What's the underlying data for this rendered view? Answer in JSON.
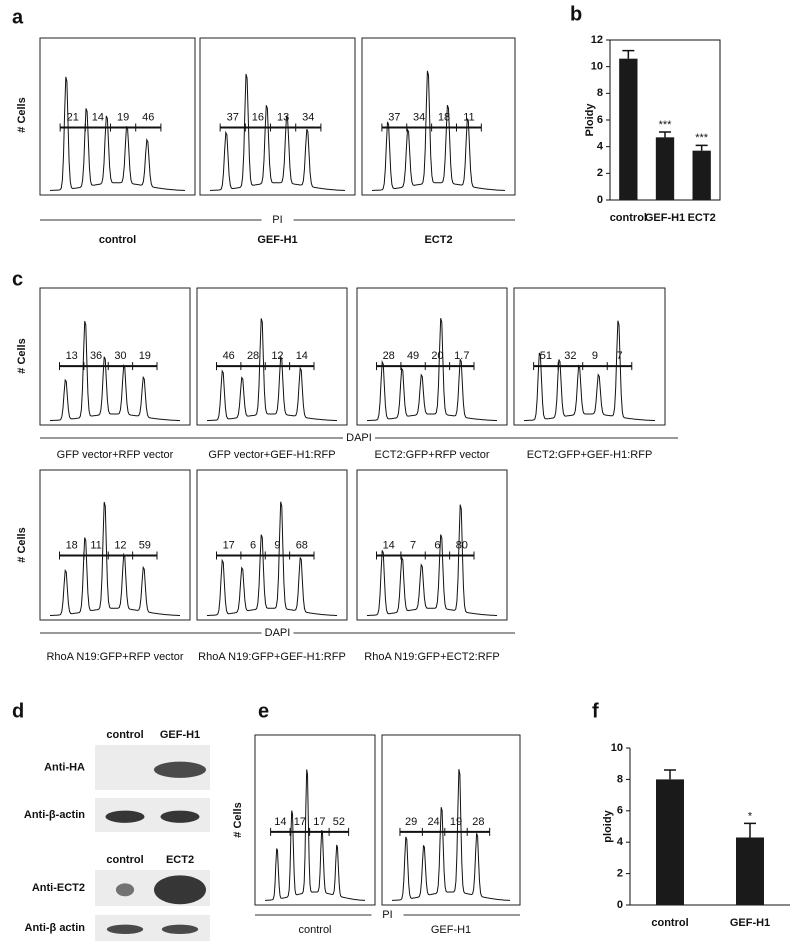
{
  "chart_data": [
    {
      "type": "bar",
      "panel_label": "b",
      "ylabel": "Ploidy",
      "categories": [
        "control",
        "GEF-H1",
        "ECT2"
      ],
      "values": [
        10.6,
        4.7,
        3.7
      ],
      "errors": [
        0.6,
        0.4,
        0.4
      ],
      "significance": [
        null,
        "***",
        "***"
      ],
      "color": "#1a1a1a",
      "ylim": [
        0,
        12
      ],
      "yticks": [
        0,
        2,
        4,
        6,
        8,
        10,
        12
      ]
    },
    {
      "type": "bar",
      "panel_label": "f",
      "ylabel": "ploidy",
      "categories": [
        "control",
        "GEF-H1"
      ],
      "values": [
        8.0,
        4.3
      ],
      "errors": [
        0.6,
        0.9
      ],
      "significance": [
        null,
        "*"
      ],
      "color": "#1a1a1a",
      "ylim": [
        0,
        10
      ],
      "yticks": [
        0,
        2,
        4,
        6,
        8,
        10
      ]
    }
  ],
  "flow_panels": [
    {
      "panel_label": "a",
      "rows": [
        {
          "xlabel": "PI",
          "ylabel": "# Cells",
          "histograms": [
            {
              "label": "control",
              "gates": [
                21,
                14,
                19,
                46
              ]
            },
            {
              "label": "GEF-H1",
              "gates": [
                37,
                16,
                13,
                34
              ]
            },
            {
              "label": "ECT2",
              "gates": [
                37,
                34,
                18,
                11
              ]
            }
          ]
        }
      ]
    },
    {
      "panel_label": "c",
      "rows": [
        {
          "xlabel": "DAPI",
          "ylabel": "# Cells",
          "histograms": [
            {
              "label": "GFP vector+RFP vector",
              "gates": [
                13,
                36,
                30,
                19
              ]
            },
            {
              "label": "GFP vector+GEF-H1:RFP",
              "gates": [
                46,
                28,
                12,
                14
              ]
            },
            {
              "label": "ECT2:GFP+RFP vector",
              "gates": [
                28,
                49,
                20,
                1.7
              ]
            },
            {
              "label": "ECT2:GFP+GEF-H1:RFP",
              "gates": [
                51,
                32,
                9,
                7
              ]
            }
          ]
        },
        {
          "xlabel": "DAPI",
          "ylabel": "# Cells",
          "histograms": [
            {
              "label": "RhoA N19:GFP+RFP vector",
              "gates": [
                18,
                11,
                12,
                59
              ]
            },
            {
              "label": "RhoA N19:GFP+GEF-H1:RFP",
              "gates": [
                17,
                6,
                9,
                68
              ]
            },
            {
              "label": "RhoA N19:GFP+ECT2:RFP",
              "gates": [
                14,
                7,
                6,
                80
              ]
            }
          ]
        }
      ]
    },
    {
      "panel_label": "e",
      "rows": [
        {
          "xlabel": "PI",
          "ylabel": "# Cells",
          "histograms": [
            {
              "label": "control",
              "gates": [
                14,
                17,
                17,
                52
              ]
            },
            {
              "label": "GEF-H1",
              "gates": [
                29,
                24,
                19,
                28
              ]
            }
          ]
        }
      ]
    }
  ],
  "blots": {
    "panel_label": "d",
    "groups": [
      {
        "lanes": [
          "control",
          "GEF-H1"
        ],
        "rows": [
          "Anti-HA",
          "Anti-β-actin"
        ]
      },
      {
        "lanes": [
          "control",
          "ECT2"
        ],
        "rows": [
          "Anti-ECT2",
          "Anti-β actin"
        ]
      }
    ]
  }
}
